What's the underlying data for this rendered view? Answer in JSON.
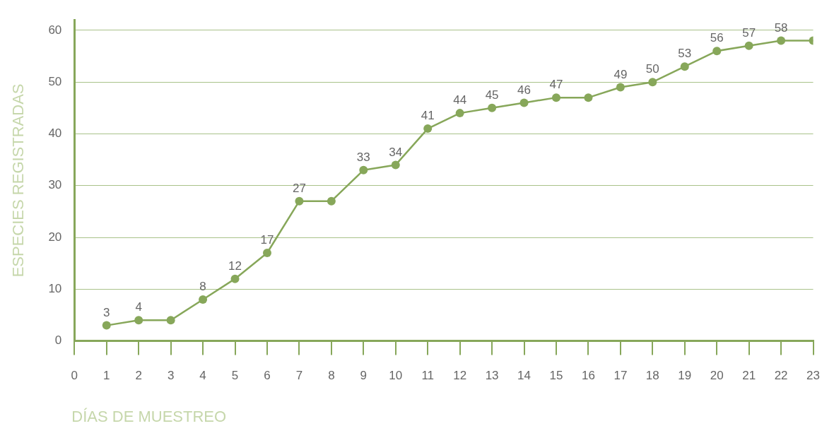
{
  "chart_data": {
    "type": "line",
    "xlabel": "DÍAS DE MUESTREO",
    "ylabel": "ESPECIES REGISTRADAS",
    "x": [
      1,
      2,
      3,
      4,
      5,
      6,
      7,
      8,
      9,
      10,
      11,
      12,
      13,
      14,
      15,
      16,
      17,
      18,
      19,
      20,
      21,
      22,
      23
    ],
    "values": [
      3,
      4,
      4,
      8,
      12,
      17,
      27,
      27,
      33,
      34,
      41,
      44,
      45,
      46,
      47,
      47,
      49,
      50,
      53,
      56,
      57,
      58,
      58
    ],
    "value_labels": [
      "3",
      "4",
      null,
      "8",
      "12",
      "17",
      "27",
      null,
      "33",
      "34",
      "41",
      "44",
      "45",
      "46",
      "47",
      null,
      "49",
      "50",
      "53",
      "56",
      "57",
      "58",
      null
    ],
    "color": "#87a75a",
    "marker": "circle",
    "line_style": "solid",
    "grid": "y",
    "xlim": [
      0,
      23
    ],
    "xticks": [
      0,
      1,
      2,
      3,
      4,
      5,
      6,
      7,
      8,
      9,
      10,
      11,
      12,
      13,
      14,
      15,
      16,
      17,
      18,
      19,
      20,
      21,
      22,
      23
    ],
    "ylim": [
      0,
      62
    ],
    "yticks": [
      0,
      10,
      20,
      30,
      40,
      50,
      60
    ]
  }
}
